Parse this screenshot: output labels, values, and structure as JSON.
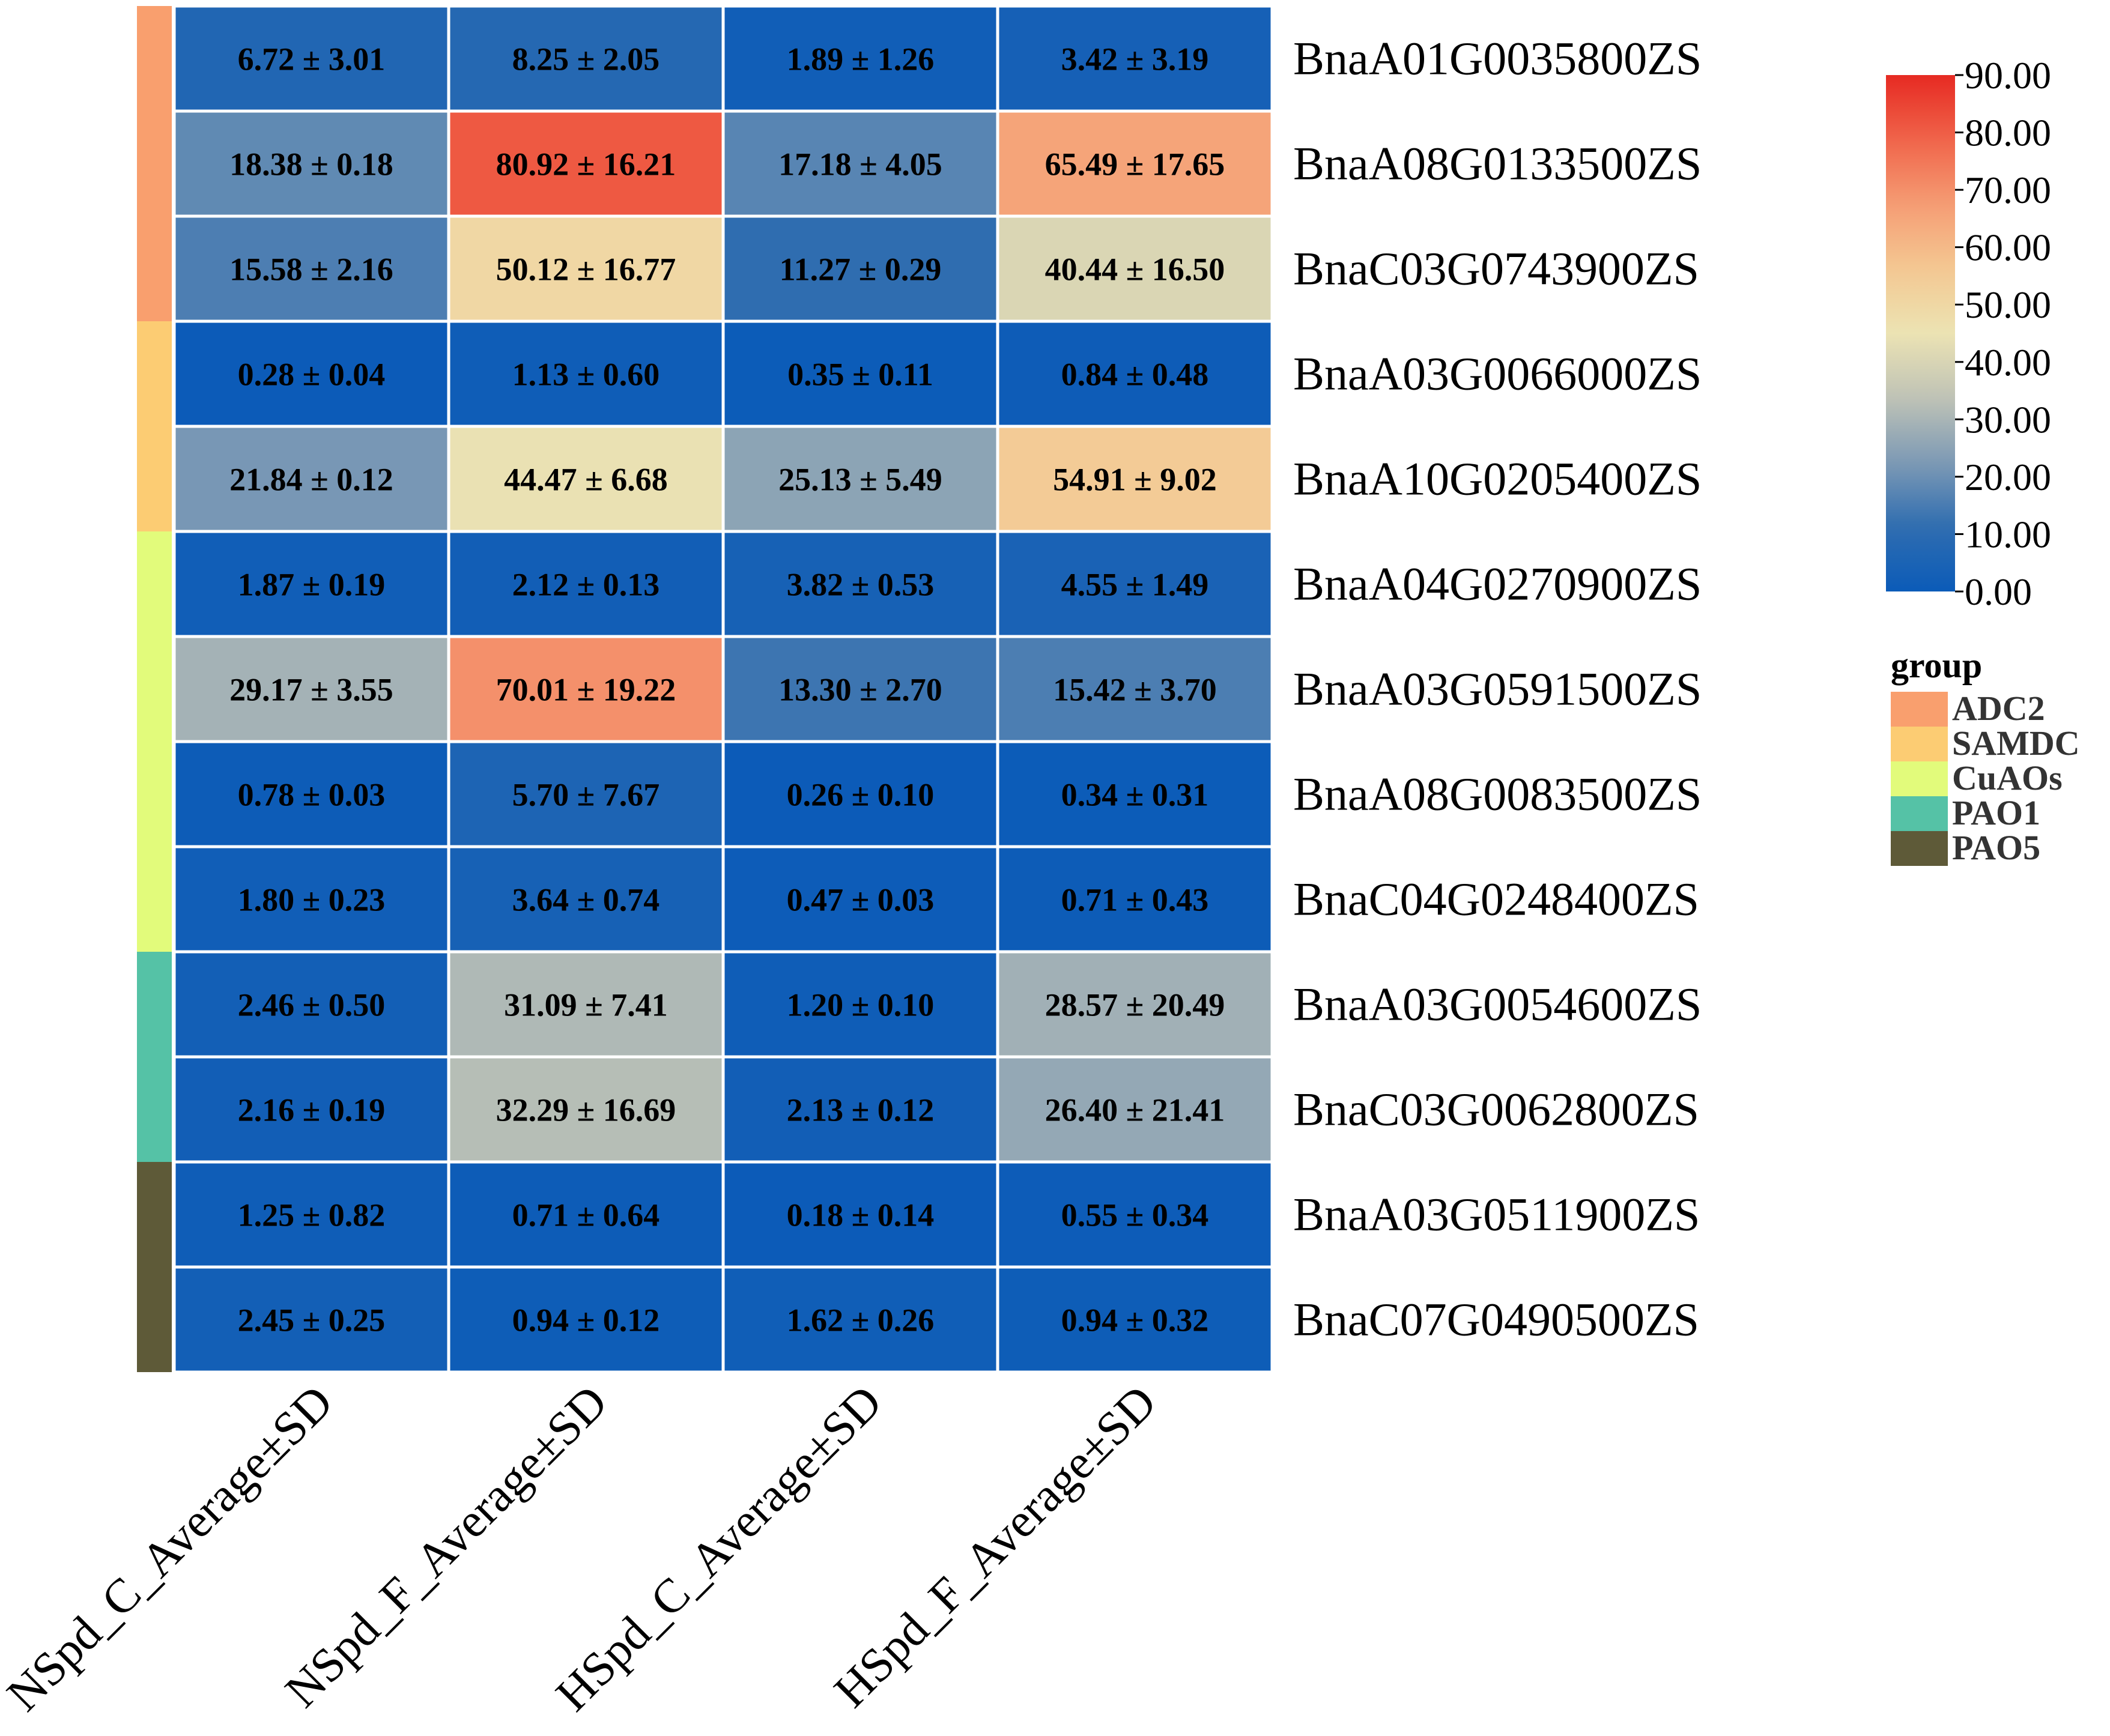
{
  "chart_data": {
    "type": "heatmap",
    "columns": [
      "NSpd_C_Average±SD",
      "NSpd_F_Average±SD",
      "HSpd_C_Average±SD",
      "HSpd_F_Average±SD"
    ],
    "rows": [
      {
        "gene": "BnaA01G0035800ZS",
        "group": "ADC2",
        "values": [
          6.72,
          8.25,
          1.89,
          3.42
        ],
        "labels": [
          "6.72 ± 3.01",
          "8.25 ± 2.05",
          "1.89 ± 1.26",
          "3.42 ± 3.19"
        ]
      },
      {
        "gene": "BnaA08G0133500ZS",
        "group": "ADC2",
        "values": [
          18.38,
          80.92,
          17.18,
          65.49
        ],
        "labels": [
          "18.38 ± 0.18",
          "80.92 ± 16.21",
          "17.18 ± 4.05",
          "65.49 ± 17.65"
        ]
      },
      {
        "gene": "BnaC03G0743900ZS",
        "group": "ADC2",
        "values": [
          15.58,
          50.12,
          11.27,
          40.44
        ],
        "labels": [
          "15.58 ± 2.16",
          "50.12 ± 16.77",
          "11.27 ± 0.29",
          "40.44 ± 16.50"
        ]
      },
      {
        "gene": "BnaA03G0066000ZS",
        "group": "SAMDC",
        "values": [
          0.28,
          1.13,
          0.35,
          0.84
        ],
        "labels": [
          "0.28 ± 0.04",
          "1.13 ± 0.60",
          "0.35 ± 0.11",
          "0.84 ± 0.48"
        ]
      },
      {
        "gene": "BnaA10G0205400ZS",
        "group": "SAMDC",
        "values": [
          21.84,
          44.47,
          25.13,
          54.91
        ],
        "labels": [
          "21.84 ± 0.12",
          "44.47 ± 6.68",
          "25.13 ± 5.49",
          "54.91 ± 9.02"
        ]
      },
      {
        "gene": "BnaA04G0270900ZS",
        "group": "CuAOs",
        "values": [
          1.87,
          2.12,
          3.82,
          4.55
        ],
        "labels": [
          "1.87 ± 0.19",
          "2.12 ± 0.13",
          "3.82 ± 0.53",
          "4.55 ± 1.49"
        ]
      },
      {
        "gene": "BnaA03G0591500ZS",
        "group": "CuAOs",
        "values": [
          29.17,
          70.01,
          13.3,
          15.42
        ],
        "labels": [
          "29.17 ± 3.55",
          "70.01 ± 19.22",
          "13.30 ± 2.70",
          "15.42 ± 3.70"
        ]
      },
      {
        "gene": "BnaA08G0083500ZS",
        "group": "CuAOs",
        "values": [
          0.78,
          5.7,
          0.26,
          0.34
        ],
        "labels": [
          "0.78 ± 0.03",
          "5.70 ± 7.67",
          "0.26 ± 0.10",
          "0.34 ± 0.31"
        ]
      },
      {
        "gene": "BnaC04G0248400ZS",
        "group": "CuAOs",
        "values": [
          1.8,
          3.64,
          0.47,
          0.71
        ],
        "labels": [
          "1.80 ± 0.23",
          "3.64 ± 0.74",
          "0.47 ± 0.03",
          "0.71 ± 0.43"
        ]
      },
      {
        "gene": "BnaA03G0054600ZS",
        "group": "PAO1",
        "values": [
          2.46,
          31.09,
          1.2,
          28.57
        ],
        "labels": [
          "2.46 ± 0.50",
          "31.09 ± 7.41",
          "1.20 ± 0.10",
          "28.57 ± 20.49"
        ]
      },
      {
        "gene": "BnaC03G0062800ZS",
        "group": "PAO1",
        "values": [
          2.16,
          32.29,
          2.13,
          26.4
        ],
        "labels": [
          "2.16 ± 0.19",
          "32.29 ± 16.69",
          "2.13 ± 0.12",
          "26.40 ± 21.41"
        ]
      },
      {
        "gene": "BnaA03G0511900ZS",
        "group": "PAO5",
        "values": [
          1.25,
          0.71,
          0.18,
          0.55
        ],
        "labels": [
          "1.25 ± 0.82",
          "0.71 ± 0.64",
          "0.18 ± 0.14",
          "0.55 ± 0.34"
        ]
      },
      {
        "gene": "BnaC07G0490500ZS",
        "group": "PAO5",
        "values": [
          2.45,
          0.94,
          1.62,
          0.94
        ],
        "labels": [
          "2.45 ± 0.25",
          "0.94 ± 0.12",
          "1.62 ± 0.26",
          "0.94 ± 0.32"
        ]
      }
    ],
    "colorscale": {
      "range": [
        0,
        90
      ],
      "ticks": [
        "0.00",
        "10.00",
        "20.00",
        "30.00",
        "40.00",
        "50.00",
        "60.00",
        "70.00",
        "80.00",
        "90.00"
      ],
      "stops": [
        "#0b5bb8",
        "#2f6db0",
        "#7d9ab5",
        "#bfc3b6",
        "#ece3b3",
        "#f4c892",
        "#f59c74",
        "#f0644a",
        "#e62a22"
      ]
    },
    "legend": {
      "title": "group",
      "items": [
        {
          "label": "ADC2",
          "color": "#f99f6e"
        },
        {
          "label": "SAMDC",
          "color": "#fccc73"
        },
        {
          "label": "CuAOs",
          "color": "#e2fb7b"
        },
        {
          "label": "PAO1",
          "color": "#55c2a6"
        },
        {
          "label": "PAO5",
          "color": "#5e5a38"
        }
      ]
    }
  }
}
